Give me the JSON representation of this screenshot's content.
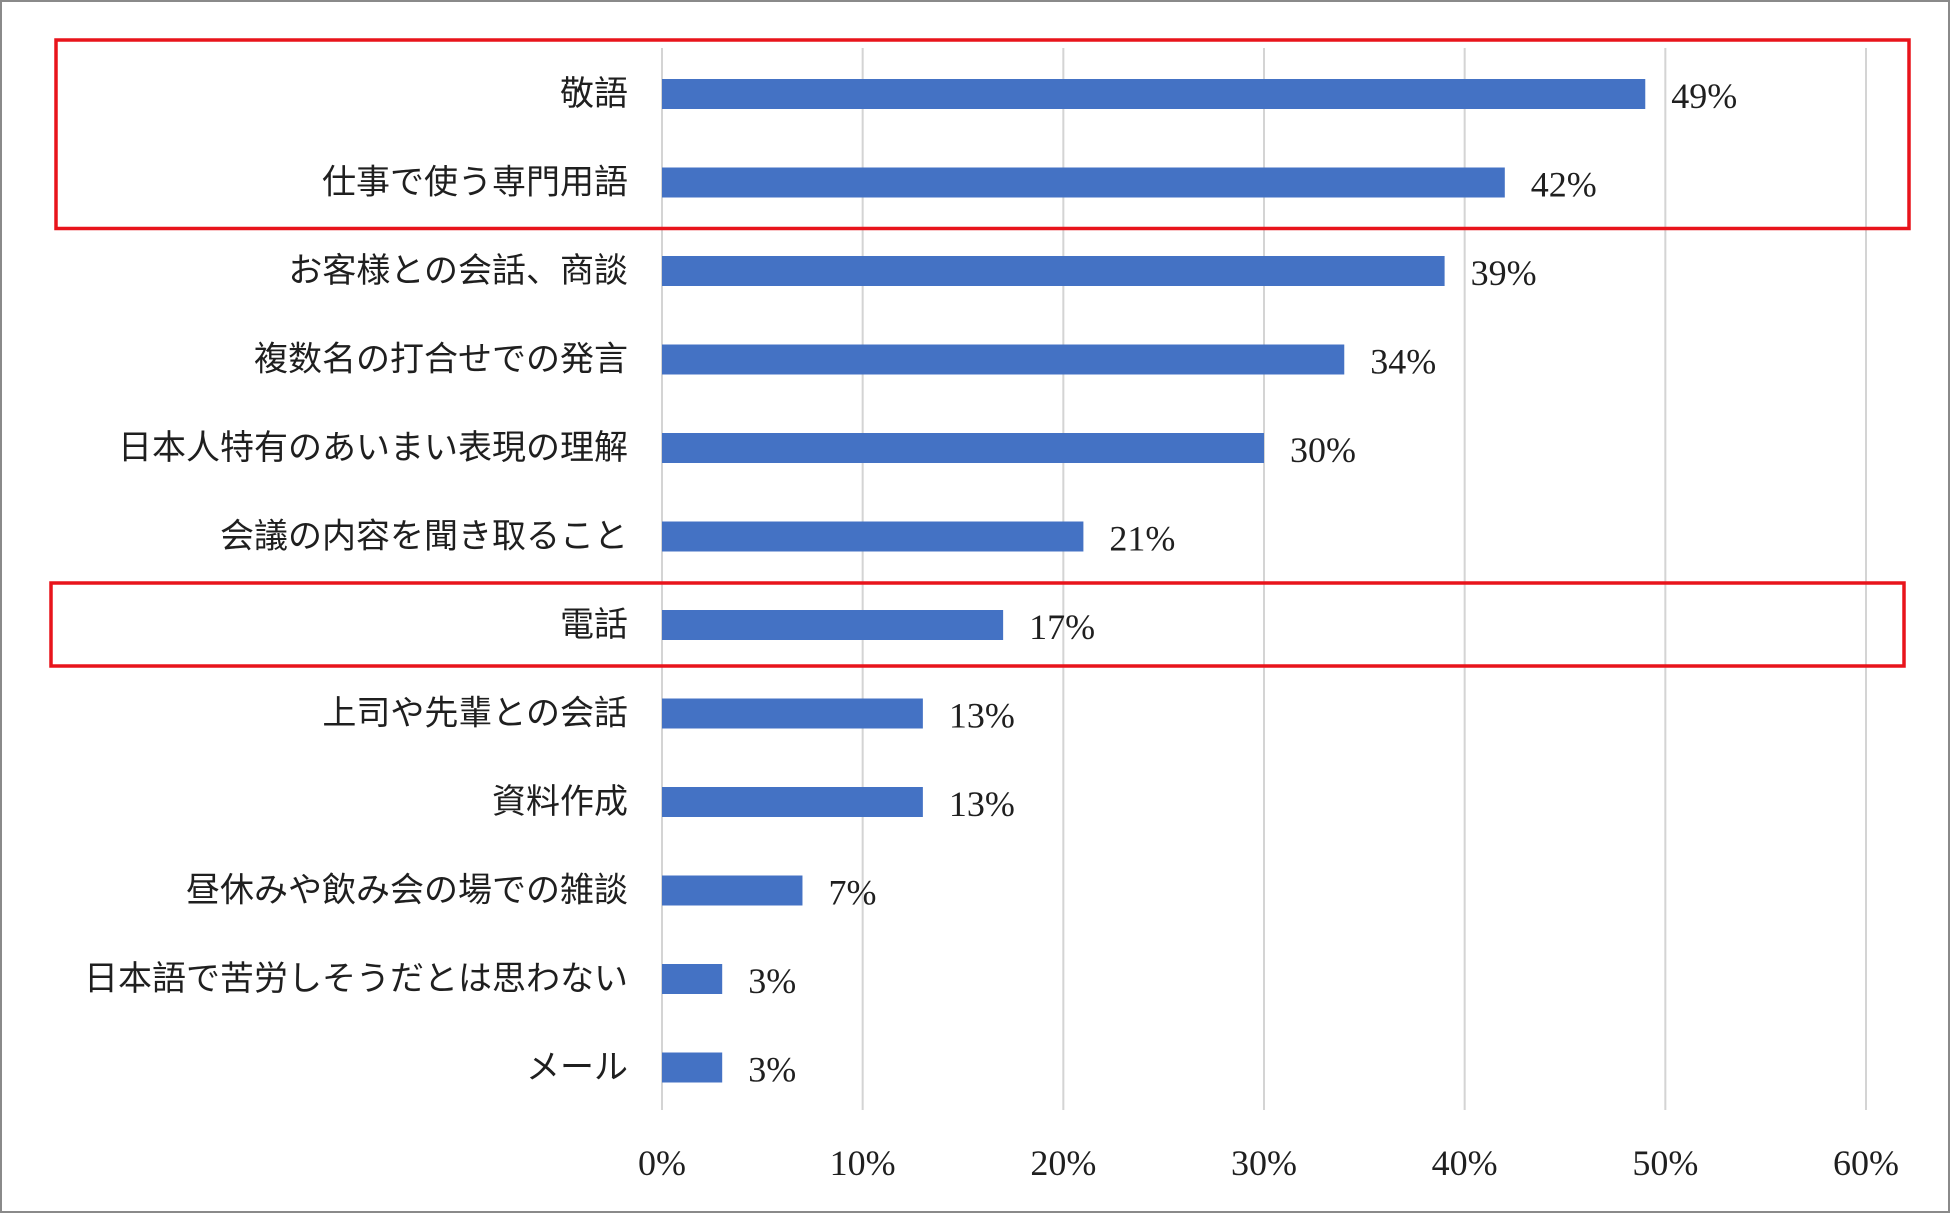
{
  "colors": {
    "bar": "#4472C4",
    "highlight": "#E8141B",
    "grid": "#D4D4D4",
    "text": "#1F1F1F"
  },
  "chart_data": {
    "type": "bar",
    "orientation": "horizontal",
    "title": "",
    "xlabel": "",
    "ylabel": "",
    "categories": [
      "敬語",
      "仕事で使う専門用語",
      "お客様との会話、商談",
      "複数名の打合せでの発言",
      "日本人特有のあいまい表現の理解",
      "会議の内容を聞き取ること",
      "電話",
      "上司や先輩との会話",
      "資料作成",
      "昼休みや飲み会の場での雑談",
      "日本語で苦労しそうだとは思わない",
      "メール"
    ],
    "values": [
      49,
      42,
      39,
      34,
      30,
      21,
      17,
      13,
      13,
      7,
      3,
      3
    ],
    "value_labels": [
      "49%",
      "42%",
      "39%",
      "34%",
      "30%",
      "21%",
      "17%",
      "13%",
      "13%",
      "7%",
      "3%",
      "3%"
    ],
    "xlim": [
      0,
      60
    ],
    "x_ticks": [
      0,
      10,
      20,
      30,
      40,
      50,
      60
    ],
    "x_tick_labels": [
      "0%",
      "10%",
      "20%",
      "30%",
      "40%",
      "50%",
      "60%"
    ],
    "grid": true,
    "legend": "none",
    "highlight_groups": [
      [
        "敬語",
        "仕事で使う専門用語"
      ],
      [
        "電話"
      ]
    ]
  }
}
